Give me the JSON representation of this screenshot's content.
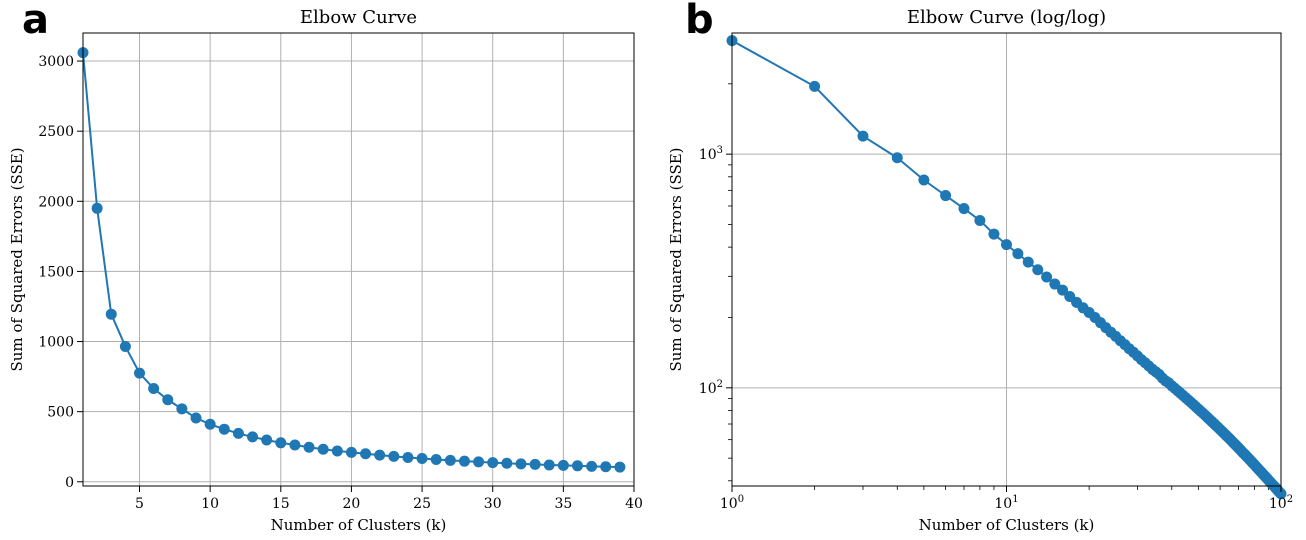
{
  "chart_data": [
    {
      "panel_label": "a",
      "type": "line",
      "title": "Elbow Curve",
      "xlabel": "Number of Clusters (k)",
      "ylabel": "Sum of Squared Errors (SSE)",
      "xlim": [
        1,
        40
      ],
      "ylim": [
        -30,
        3200
      ],
      "xscale": "linear",
      "yscale": "linear",
      "xticks": [
        5,
        10,
        15,
        20,
        25,
        30,
        35,
        40
      ],
      "xtick_labels": [
        "5",
        "10",
        "15",
        "20",
        "25",
        "30",
        "35",
        "40"
      ],
      "yticks": [
        0,
        500,
        1000,
        1500,
        2000,
        2500,
        3000
      ],
      "ytick_labels": [
        "0",
        "500",
        "1000",
        "1500",
        "2000",
        "2500",
        "3000"
      ],
      "grid": true,
      "color": "#1f77b4",
      "marker": "circle",
      "x": [
        1,
        2,
        3,
        4,
        5,
        6,
        7,
        8,
        9,
        10,
        11,
        12,
        13,
        14,
        15,
        16,
        17,
        18,
        19,
        20,
        21,
        22,
        23,
        24,
        25,
        26,
        27,
        28,
        29,
        30,
        31,
        32,
        33,
        34,
        35,
        36,
        37,
        38,
        39
      ],
      "y": [
        3060,
        1950,
        1195,
        965,
        775,
        665,
        585,
        520,
        455,
        410,
        375,
        345,
        320,
        298,
        278,
        262,
        246,
        232,
        220,
        210,
        200,
        190,
        181,
        173,
        166,
        159,
        153,
        147,
        142,
        137,
        132,
        128,
        124,
        120,
        117,
        114,
        110,
        107,
        105
      ]
    },
    {
      "panel_label": "b",
      "type": "line",
      "title": "Elbow Curve (log/log)",
      "xlabel": "Number of Clusters (k)",
      "ylabel": "Sum of Squared Errors (SSE)",
      "xlim": [
        1,
        100
      ],
      "ylim": [
        38,
        3300
      ],
      "xscale": "log",
      "yscale": "log",
      "xticks": [
        1,
        10,
        100
      ],
      "xtick_labels": [
        {
          "base": "10",
          "exp": "0"
        },
        {
          "base": "10",
          "exp": "1"
        },
        {
          "base": "10",
          "exp": "2"
        }
      ],
      "yticks": [
        100,
        1000
      ],
      "ytick_labels": [
        {
          "base": "10",
          "exp": "2"
        },
        {
          "base": "10",
          "exp": "3"
        }
      ],
      "grid": true,
      "color": "#1f77b4",
      "marker": "circle",
      "x": [
        1,
        2,
        3,
        4,
        5,
        6,
        7,
        8,
        9,
        10,
        11,
        12,
        13,
        14,
        15,
        16,
        17,
        18,
        19,
        20,
        21,
        22,
        23,
        24,
        25,
        26,
        27,
        28,
        29,
        30,
        31,
        32,
        33,
        34,
        35,
        36,
        37,
        38,
        39,
        40,
        41,
        42,
        43,
        44,
        45,
        46,
        47,
        48,
        49,
        50,
        51,
        52,
        53,
        54,
        55,
        56,
        57,
        58,
        59,
        60,
        61,
        62,
        63,
        64,
        65,
        66,
        67,
        68,
        69,
        70,
        71,
        72,
        73,
        74,
        75,
        76,
        77,
        78,
        79,
        80,
        81,
        82,
        83,
        84,
        85,
        86,
        87,
        88,
        89,
        90,
        91,
        92,
        93,
        94,
        95,
        96,
        97,
        98,
        99,
        100
      ],
      "y": [
        3060,
        1950,
        1195,
        965,
        775,
        665,
        585,
        520,
        455,
        410,
        375,
        345,
        320,
        298,
        278,
        262,
        246,
        232,
        220,
        210,
        200,
        190,
        181,
        173,
        166,
        159,
        153,
        147,
        142,
        137,
        132,
        128,
        124,
        120,
        117,
        114,
        110,
        107,
        105,
        102,
        99.6,
        97.2,
        94.9,
        92.7,
        90.6,
        88.6,
        86.6,
        84.7,
        82.9,
        81.1,
        79.4,
        77.8,
        76.2,
        74.6,
        73.1,
        71.7,
        70.3,
        68.9,
        67.6,
        66.3,
        65.1,
        63.9,
        62.7,
        61.6,
        60.5,
        59.4,
        58.3,
        57.3,
        56.3,
        55.3,
        54.4,
        53.4,
        52.5,
        51.7,
        50.8,
        50.0,
        49.2,
        48.4,
        47.6,
        46.9,
        46.1,
        45.4,
        44.7,
        44.0,
        43.4,
        42.7,
        42.1,
        41.5,
        40.9,
        40.3,
        39.7,
        39.2,
        38.6,
        38.1,
        37.6,
        37.1,
        36.6,
        36.1,
        35.6,
        35.2
      ]
    }
  ]
}
